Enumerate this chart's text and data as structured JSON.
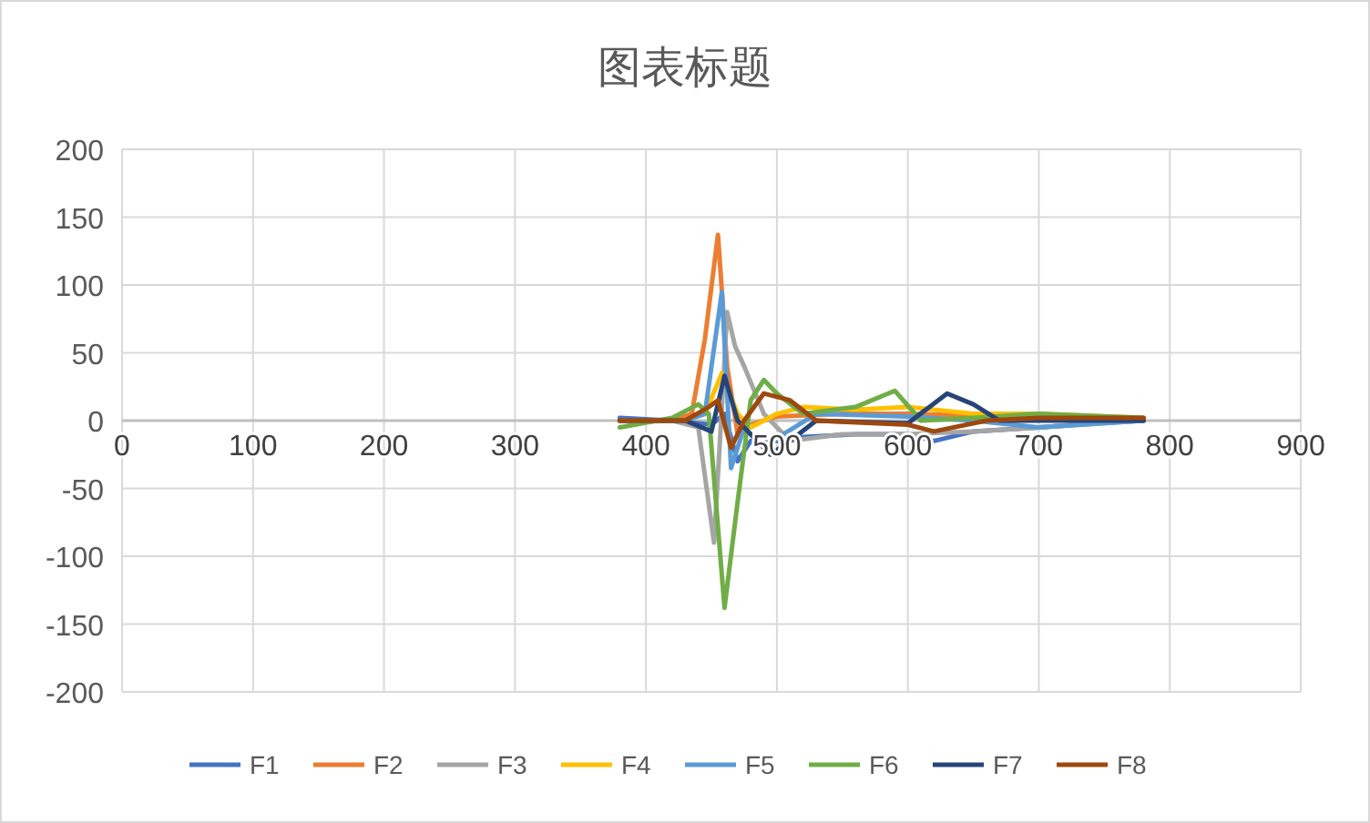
{
  "chart_data": {
    "type": "line",
    "title": "图表标题",
    "xlim": [
      0,
      900
    ],
    "xticks": [
      0,
      100,
      200,
      300,
      400,
      500,
      600,
      700,
      800,
      900
    ],
    "ylim": [
      -200,
      200
    ],
    "yticks": [
      -200,
      -150,
      -100,
      -50,
      0,
      50,
      100,
      150,
      200
    ],
    "grid": true,
    "legend": "bottom",
    "marker": "none",
    "series": [
      {
        "name": "F1",
        "color": "#4472c4",
        "x": [
          380,
          420,
          450,
          460,
          470,
          480,
          500,
          520,
          560,
          600,
          620,
          650,
          700,
          740,
          780
        ],
        "values": [
          2,
          0,
          -3,
          5,
          -30,
          -15,
          -15,
          -12,
          -10,
          -10,
          -15,
          -8,
          -5,
          -2,
          0
        ]
      },
      {
        "name": "F2",
        "color": "#ed7d31",
        "x": [
          380,
          420,
          435,
          445,
          455,
          462,
          470,
          480,
          500,
          550,
          600,
          650,
          700,
          780
        ],
        "values": [
          0,
          0,
          5,
          60,
          137,
          40,
          -10,
          -3,
          3,
          5,
          5,
          4,
          3,
          1
        ]
      },
      {
        "name": "F3",
        "color": "#a5a5a5",
        "x": [
          380,
          420,
          440,
          452,
          458,
          462,
          468,
          475,
          490,
          510,
          550,
          600,
          650,
          700,
          780
        ],
        "values": [
          0,
          0,
          -5,
          -90,
          10,
          80,
          55,
          40,
          5,
          -15,
          -10,
          -10,
          -8,
          -5,
          0
        ]
      },
      {
        "name": "F4",
        "color": "#ffc000",
        "x": [
          380,
          430,
          445,
          458,
          470,
          480,
          500,
          520,
          560,
          600,
          650,
          700,
          780
        ],
        "values": [
          0,
          0,
          5,
          35,
          5,
          -5,
          5,
          10,
          8,
          10,
          5,
          5,
          2
        ]
      },
      {
        "name": "F5",
        "color": "#5b9bd5",
        "x": [
          380,
          430,
          445,
          458,
          465,
          475,
          490,
          505,
          530,
          600,
          650,
          700,
          780
        ],
        "values": [
          0,
          0,
          5,
          95,
          -35,
          -5,
          -20,
          -10,
          5,
          3,
          0,
          -5,
          0
        ]
      },
      {
        "name": "F6",
        "color": "#70ad47",
        "x": [
          380,
          420,
          440,
          448,
          460,
          470,
          480,
          490,
          500,
          520,
          560,
          590,
          610,
          650,
          700,
          780
        ],
        "values": [
          -5,
          2,
          12,
          5,
          -138,
          -60,
          15,
          30,
          20,
          5,
          10,
          22,
          0,
          2,
          5,
          2
        ]
      },
      {
        "name": "F7",
        "color": "#264478",
        "x": [
          380,
          430,
          450,
          460,
          470,
          480,
          495,
          510,
          530,
          600,
          630,
          650,
          670,
          720,
          780
        ],
        "values": [
          0,
          0,
          -8,
          33,
          0,
          -10,
          -25,
          -15,
          0,
          -2,
          20,
          12,
          0,
          0,
          0
        ]
      },
      {
        "name": "F8",
        "color": "#9e480e",
        "x": [
          380,
          430,
          448,
          455,
          465,
          475,
          490,
          510,
          530,
          600,
          620,
          660,
          700,
          780
        ],
        "values": [
          0,
          0,
          10,
          15,
          -20,
          0,
          20,
          15,
          0,
          -3,
          -8,
          0,
          2,
          2
        ]
      }
    ]
  }
}
